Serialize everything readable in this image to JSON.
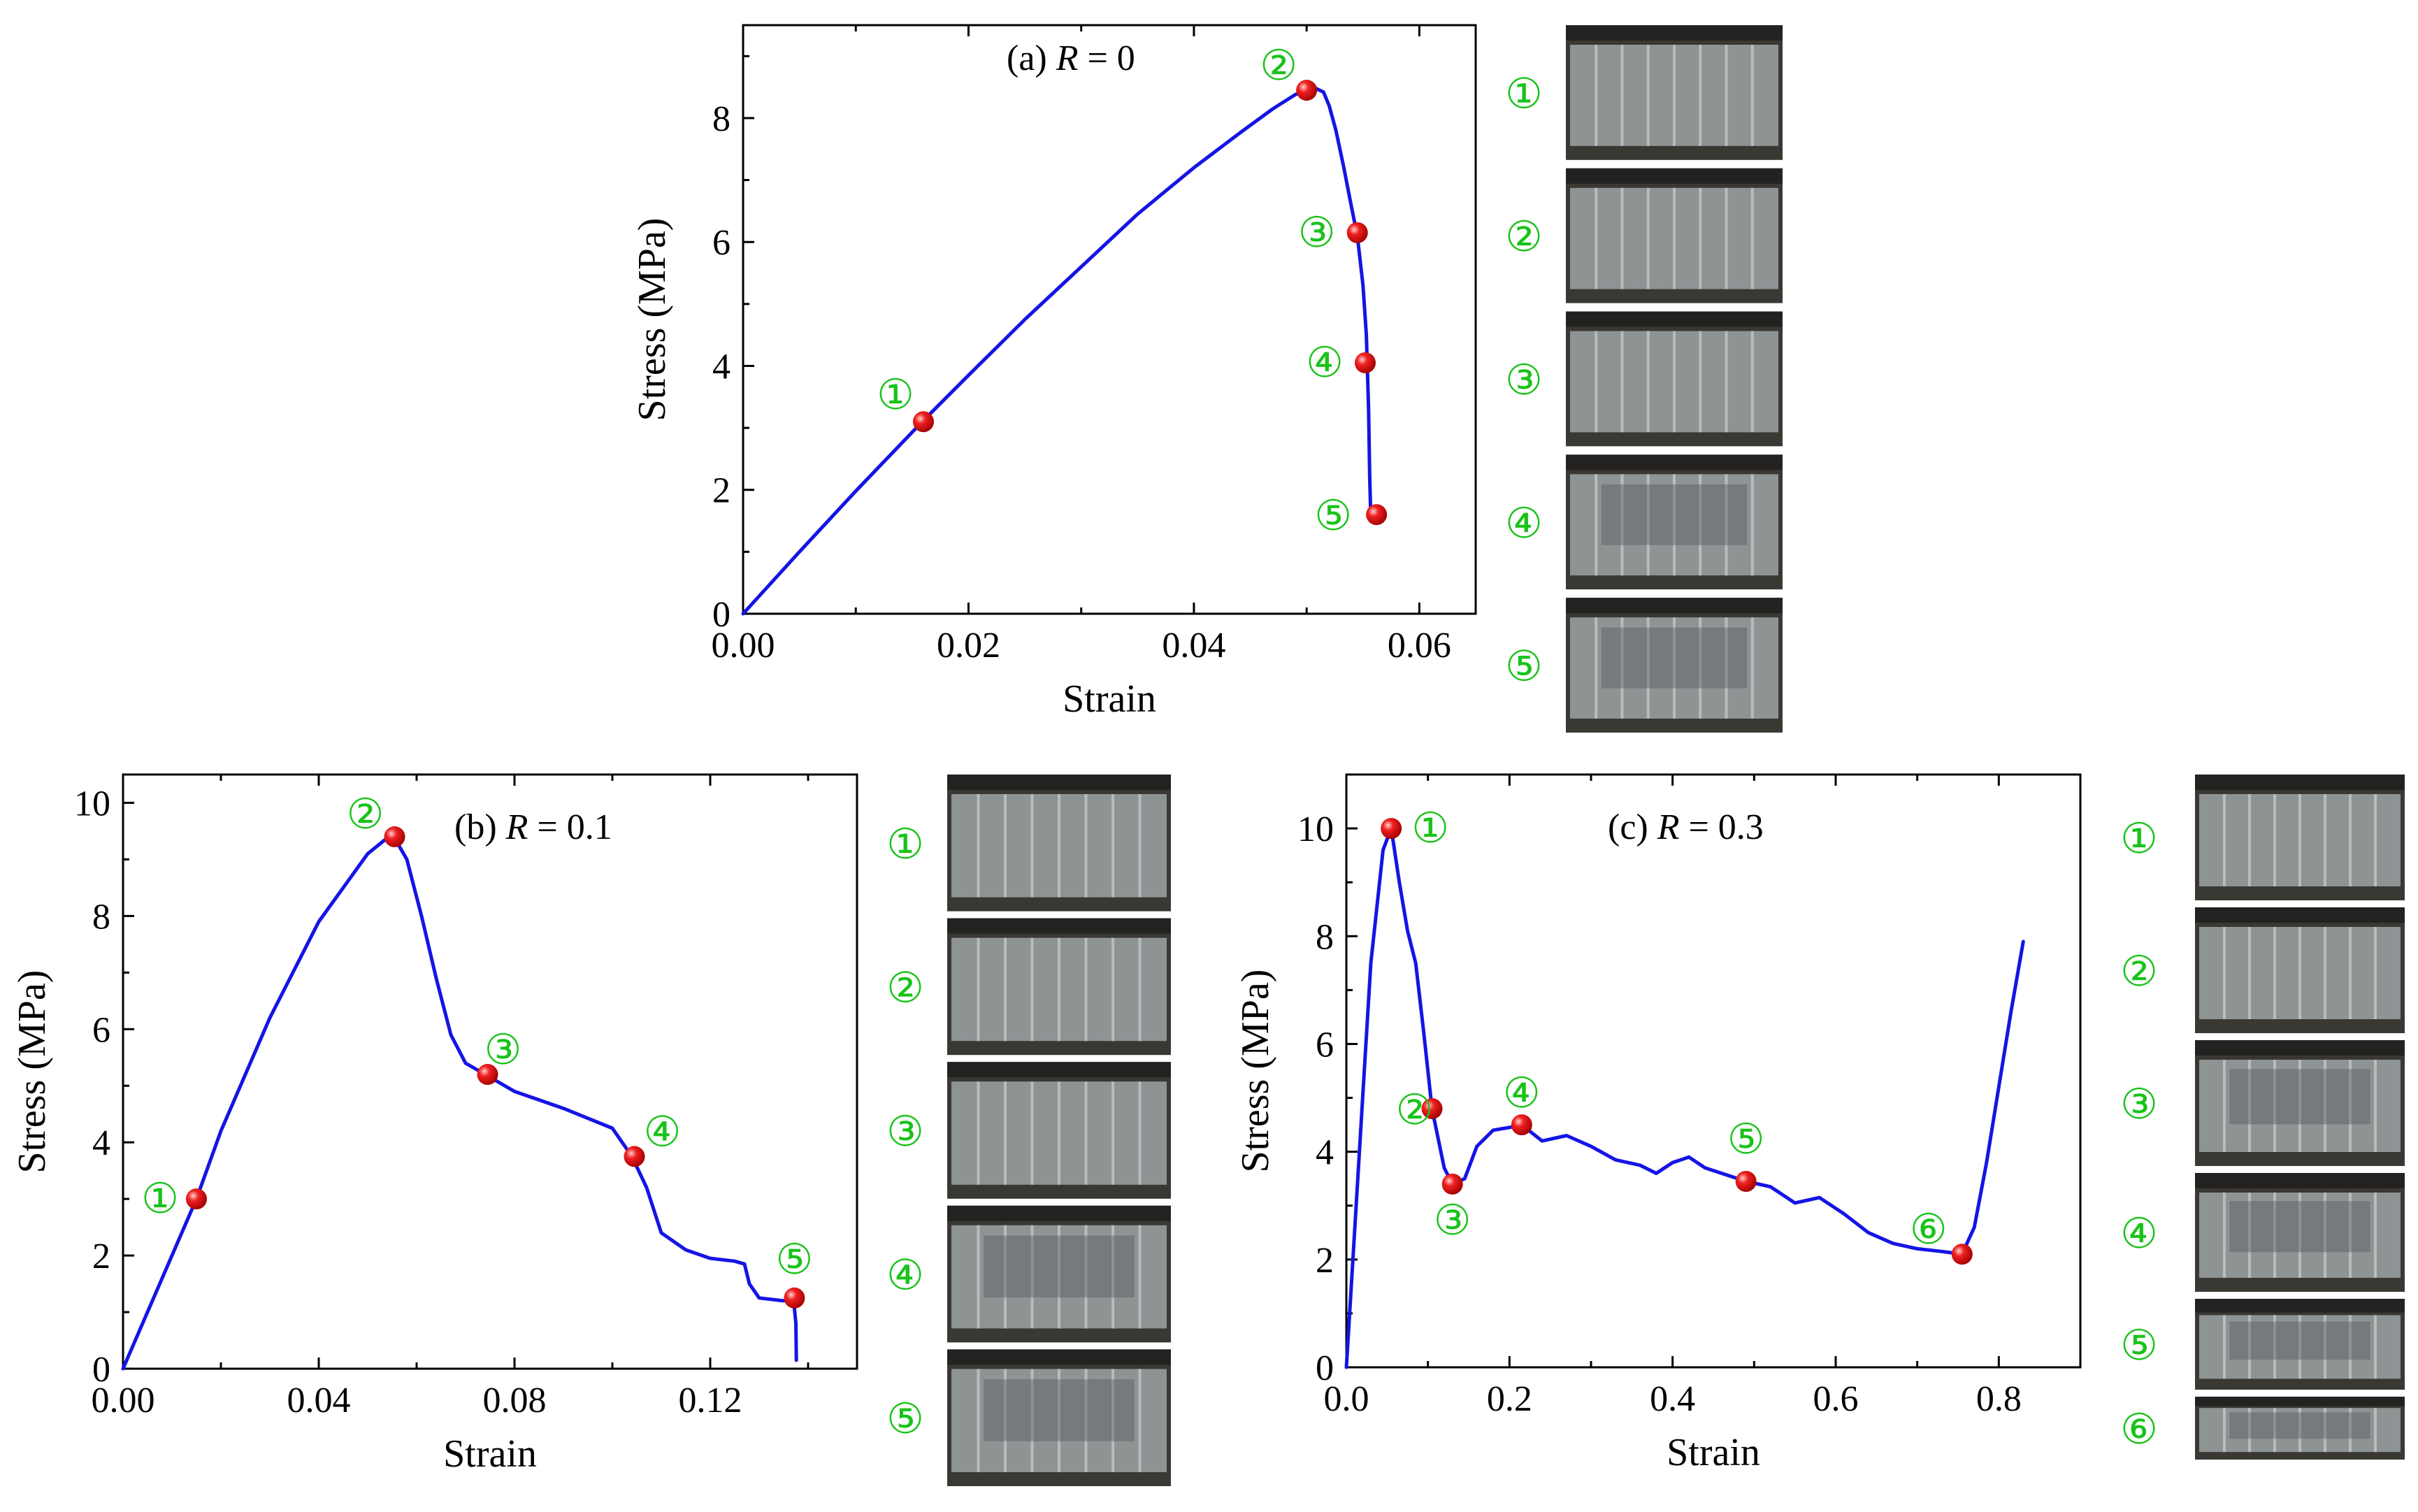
{
  "colors": {
    "curve": "#1414e6",
    "marker": "#e01010",
    "marker_highlight": "#ffb0b0",
    "marker_label": "#19c319",
    "axis": "#000000"
  },
  "chart_data": [
    {
      "type": "line",
      "title": "(a) R = 0",
      "title_prefix": "(a)",
      "title_var": "R",
      "title_eq": "= 0",
      "xlabel": "Strain",
      "ylabel": "Stress (MPa)",
      "xlim": [
        0,
        0.065
      ],
      "ylim": [
        0,
        9.5
      ],
      "x_ticks": [
        0,
        0.02,
        0.04,
        0.06
      ],
      "x_tick_labels": [
        "0.00",
        "0.02",
        "0.04",
        "0.06"
      ],
      "y_ticks": [
        0,
        2,
        4,
        6,
        8
      ],
      "y_tick_labels": [
        "0",
        "2",
        "4",
        "6",
        "8"
      ],
      "curve": {
        "x": [
          0,
          0.005,
          0.01,
          0.016,
          0.02,
          0.025,
          0.03,
          0.035,
          0.04,
          0.044,
          0.047,
          0.049,
          0.05,
          0.0508,
          0.0515,
          0.052,
          0.0526,
          0.0533,
          0.054,
          0.0545,
          0.055,
          0.0553,
          0.0555,
          0.0556,
          0.0557
        ],
        "y": [
          0,
          1.0,
          1.98,
          3.12,
          3.85,
          4.75,
          5.6,
          6.45,
          7.2,
          7.75,
          8.15,
          8.38,
          8.45,
          8.48,
          8.42,
          8.2,
          7.8,
          7.2,
          6.55,
          6.1,
          5.3,
          4.5,
          3.3,
          2.2,
          1.5
        ]
      },
      "markers": [
        {
          "label": "①",
          "x": 0.016,
          "y": 3.1
        },
        {
          "label": "②",
          "x": 0.05,
          "y": 8.45
        },
        {
          "label": "③",
          "x": 0.0545,
          "y": 6.15
        },
        {
          "label": "④",
          "x": 0.0552,
          "y": 4.05
        },
        {
          "label": "⑤",
          "x": 0.0562,
          "y": 1.6
        }
      ],
      "photo_labels": [
        "①",
        "②",
        "③",
        "④",
        "⑤"
      ]
    },
    {
      "type": "line",
      "title": "(b) R = 0.1",
      "title_prefix": "(b)",
      "title_var": "R",
      "title_eq": "= 0.1",
      "xlabel": "Strain",
      "ylabel": "Stress (MPa)",
      "xlim": [
        0,
        0.15
      ],
      "ylim": [
        0,
        10.5
      ],
      "x_ticks": [
        0,
        0.04,
        0.08,
        0.12
      ],
      "x_tick_labels": [
        "0.00",
        "0.04",
        "0.08",
        "0.12"
      ],
      "y_ticks": [
        0,
        2,
        4,
        6,
        8,
        10
      ],
      "y_tick_labels": [
        "0",
        "2",
        "4",
        "6",
        "8",
        "10"
      ],
      "curve": {
        "x": [
          0,
          0.005,
          0.01,
          0.015,
          0.02,
          0.03,
          0.04,
          0.05,
          0.055,
          0.058,
          0.061,
          0.064,
          0.067,
          0.07,
          0.074,
          0.08,
          0.09,
          0.1,
          0.104,
          0.107,
          0.11,
          0.115,
          0.12,
          0.125,
          0.127,
          0.128,
          0.13,
          0.135,
          0.137,
          0.1375,
          0.1376
        ],
        "y": [
          0,
          1.0,
          2.0,
          3.0,
          4.2,
          6.2,
          7.9,
          9.1,
          9.45,
          9.0,
          8.0,
          6.9,
          5.9,
          5.4,
          5.2,
          4.9,
          4.6,
          4.25,
          3.75,
          3.2,
          2.4,
          2.1,
          1.95,
          1.9,
          1.85,
          1.5,
          1.25,
          1.2,
          1.25,
          0.8,
          0.15
        ]
      },
      "markers": [
        {
          "label": "①",
          "x": 0.015,
          "y": 3.0
        },
        {
          "label": "②",
          "x": 0.0555,
          "y": 9.4
        },
        {
          "label": "③",
          "x": 0.0745,
          "y": 5.2
        },
        {
          "label": "④",
          "x": 0.1045,
          "y": 3.75
        },
        {
          "label": "⑤",
          "x": 0.1372,
          "y": 1.25
        }
      ],
      "photo_labels": [
        "①",
        "②",
        "③",
        "④",
        "⑤"
      ]
    },
    {
      "type": "line",
      "title": "(c) R = 0.3",
      "title_prefix": "(c)",
      "title_var": "R",
      "title_eq": "= 0.3",
      "xlabel": "Strain",
      "ylabel": "Stress (MPa)",
      "xlim": [
        0,
        0.9
      ],
      "ylim": [
        0,
        11
      ],
      "x_ticks": [
        0,
        0.2,
        0.4,
        0.6,
        0.8
      ],
      "x_tick_labels": [
        "0.0",
        "0.2",
        "0.4",
        "0.6",
        "0.8"
      ],
      "y_ticks": [
        0,
        2,
        4,
        6,
        8,
        10
      ],
      "y_tick_labels": [
        "0",
        "2",
        "4",
        "6",
        "8",
        "10"
      ],
      "curve": {
        "x": [
          0,
          0.01,
          0.02,
          0.03,
          0.045,
          0.055,
          0.065,
          0.075,
          0.085,
          0.095,
          0.105,
          0.12,
          0.13,
          0.145,
          0.16,
          0.18,
          0.2,
          0.215,
          0.24,
          0.27,
          0.3,
          0.33,
          0.36,
          0.38,
          0.4,
          0.42,
          0.44,
          0.47,
          0.49,
          0.52,
          0.55,
          0.58,
          0.61,
          0.64,
          0.67,
          0.7,
          0.73,
          0.755,
          0.77,
          0.785,
          0.8,
          0.815,
          0.83
        ],
        "y": [
          0,
          2.5,
          5.0,
          7.5,
          9.6,
          10.0,
          9.0,
          8.1,
          7.5,
          6.2,
          4.8,
          3.7,
          3.4,
          3.5,
          4.1,
          4.4,
          4.45,
          4.5,
          4.2,
          4.3,
          4.1,
          3.85,
          3.75,
          3.6,
          3.8,
          3.9,
          3.7,
          3.55,
          3.45,
          3.35,
          3.05,
          3.15,
          2.85,
          2.5,
          2.3,
          2.2,
          2.15,
          2.1,
          2.6,
          3.8,
          5.2,
          6.6,
          7.9
        ]
      },
      "markers": [
        {
          "label": "①",
          "x": 0.055,
          "y": 10.0
        },
        {
          "label": "②",
          "x": 0.105,
          "y": 4.8
        },
        {
          "label": "③",
          "x": 0.13,
          "y": 3.4
        },
        {
          "label": "④",
          "x": 0.215,
          "y": 4.5
        },
        {
          "label": "⑤",
          "x": 0.49,
          "y": 3.45
        },
        {
          "label": "⑥",
          "x": 0.755,
          "y": 2.1
        }
      ],
      "photo_labels": [
        "①",
        "②",
        "③",
        "④",
        "⑤",
        "⑥"
      ]
    }
  ]
}
